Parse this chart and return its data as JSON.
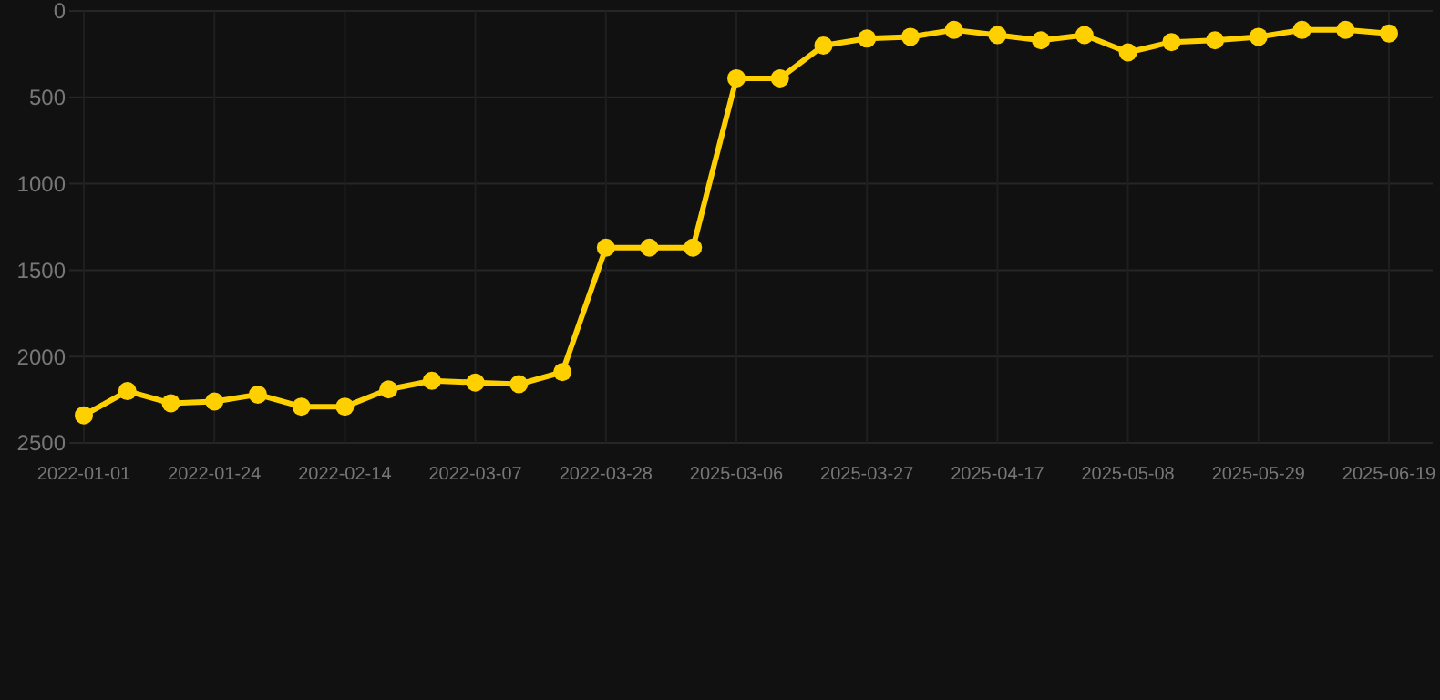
{
  "chart_data": {
    "type": "line",
    "categories": [
      "2022-01-01",
      null,
      null,
      "2022-01-24",
      null,
      null,
      "2022-02-14",
      null,
      null,
      "2022-03-07",
      null,
      null,
      "2022-03-28",
      null,
      null,
      "2025-03-06",
      null,
      null,
      "2025-03-27",
      null,
      null,
      "2025-04-17",
      null,
      null,
      "2025-05-08",
      null,
      null,
      "2025-05-29",
      null,
      null,
      "2025-06-19"
    ],
    "series": [
      {
        "color": "#ffd000",
        "values": [
          2340,
          2200,
          2270,
          2260,
          2220,
          2290,
          2290,
          2190,
          2140,
          2150,
          2160,
          2090,
          1370,
          1370,
          1370,
          390,
          390,
          200,
          160,
          150,
          110,
          140,
          170,
          140,
          240,
          180,
          170,
          150,
          110,
          110,
          130
        ]
      }
    ],
    "ylim": [
      2500,
      0
    ],
    "yticks": [
      0,
      500,
      1000,
      1500,
      2000,
      2500
    ],
    "grid": true,
    "marker": "circle",
    "line_style": "solid"
  }
}
